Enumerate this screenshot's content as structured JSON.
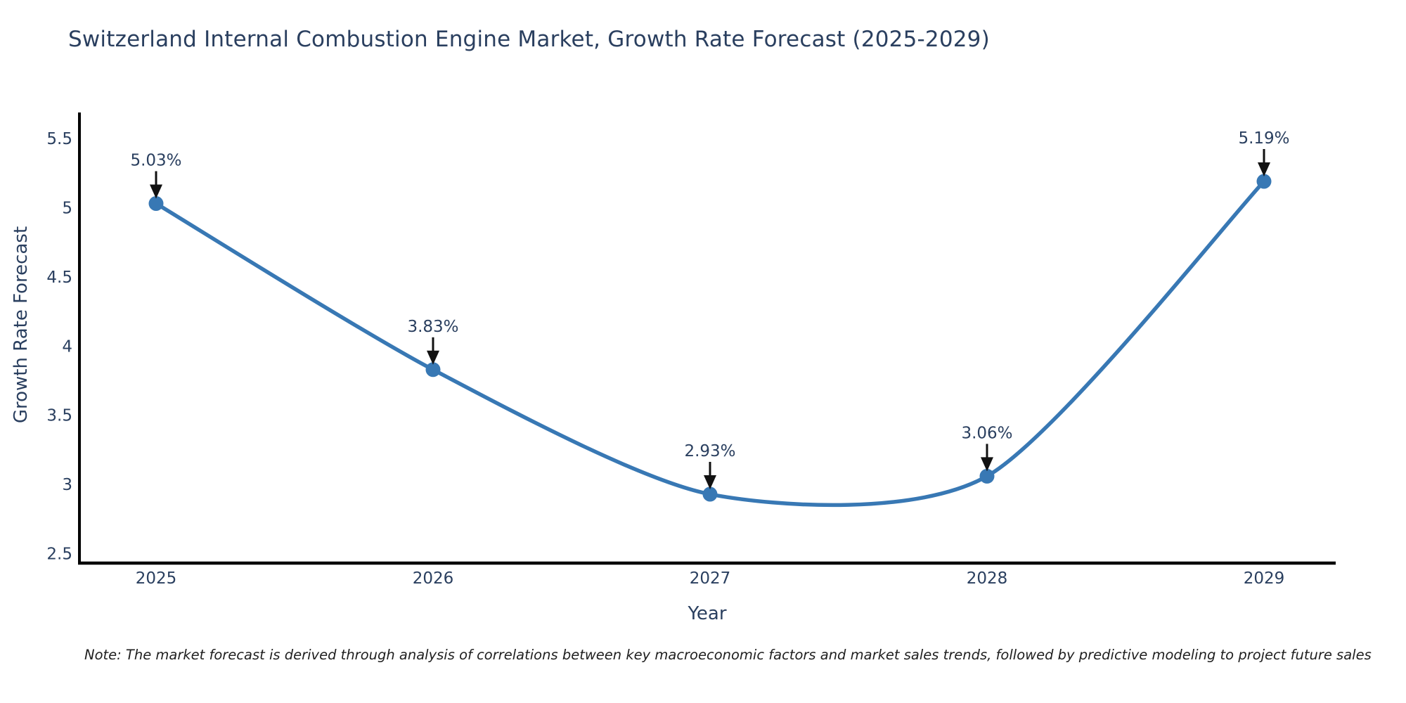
{
  "page": {
    "title": "Switzerland Internal Combustion Engine Market, Growth Rate Forecast (2025-2029)",
    "note": "Note: The market forecast is derived through analysis of correlations between key macroeconomic factors and market sales trends, followed by predictive modeling to project future sales"
  },
  "chart_data": {
    "type": "line",
    "line_shape": "spline",
    "title": "Switzerland Internal Combustion Engine Market, Growth Rate Forecast (2025-2029)",
    "xlabel": "Year",
    "ylabel": "Growth Rate Forecast",
    "categories": [
      "2025",
      "2026",
      "2027",
      "2028",
      "2029"
    ],
    "series": [
      {
        "name": "Growth Rate Forecast",
        "values": [
          5.03,
          3.83,
          2.93,
          3.06,
          5.19
        ]
      }
    ],
    "point_labels": [
      "5.03%",
      "3.83%",
      "2.93%",
      "3.06%",
      "5.19%"
    ],
    "ytick_values": [
      5.5,
      5,
      4.5,
      4,
      3.5,
      3,
      2.5
    ],
    "ytick_labels": [
      "5.5",
      "5",
      "4.5",
      "4",
      "3.5",
      "3",
      "2.5"
    ],
    "ylim": [
      2.42,
      5.69
    ],
    "grid": false,
    "legend_position": "none",
    "annotation_style": "down-arrow-to-point",
    "colors": {
      "line": "#3878b4",
      "marker": "#3878b4",
      "annotation_text": "#2a3f5f",
      "annotation_arrow": "#111111",
      "axis_line": "#000000",
      "tick_text": "#2a3f5f",
      "title_text": "#2a3f5f",
      "axis_title_text": "#2a3f5f",
      "note_text": "#1f1f1f",
      "background": "#ffffff"
    }
  }
}
